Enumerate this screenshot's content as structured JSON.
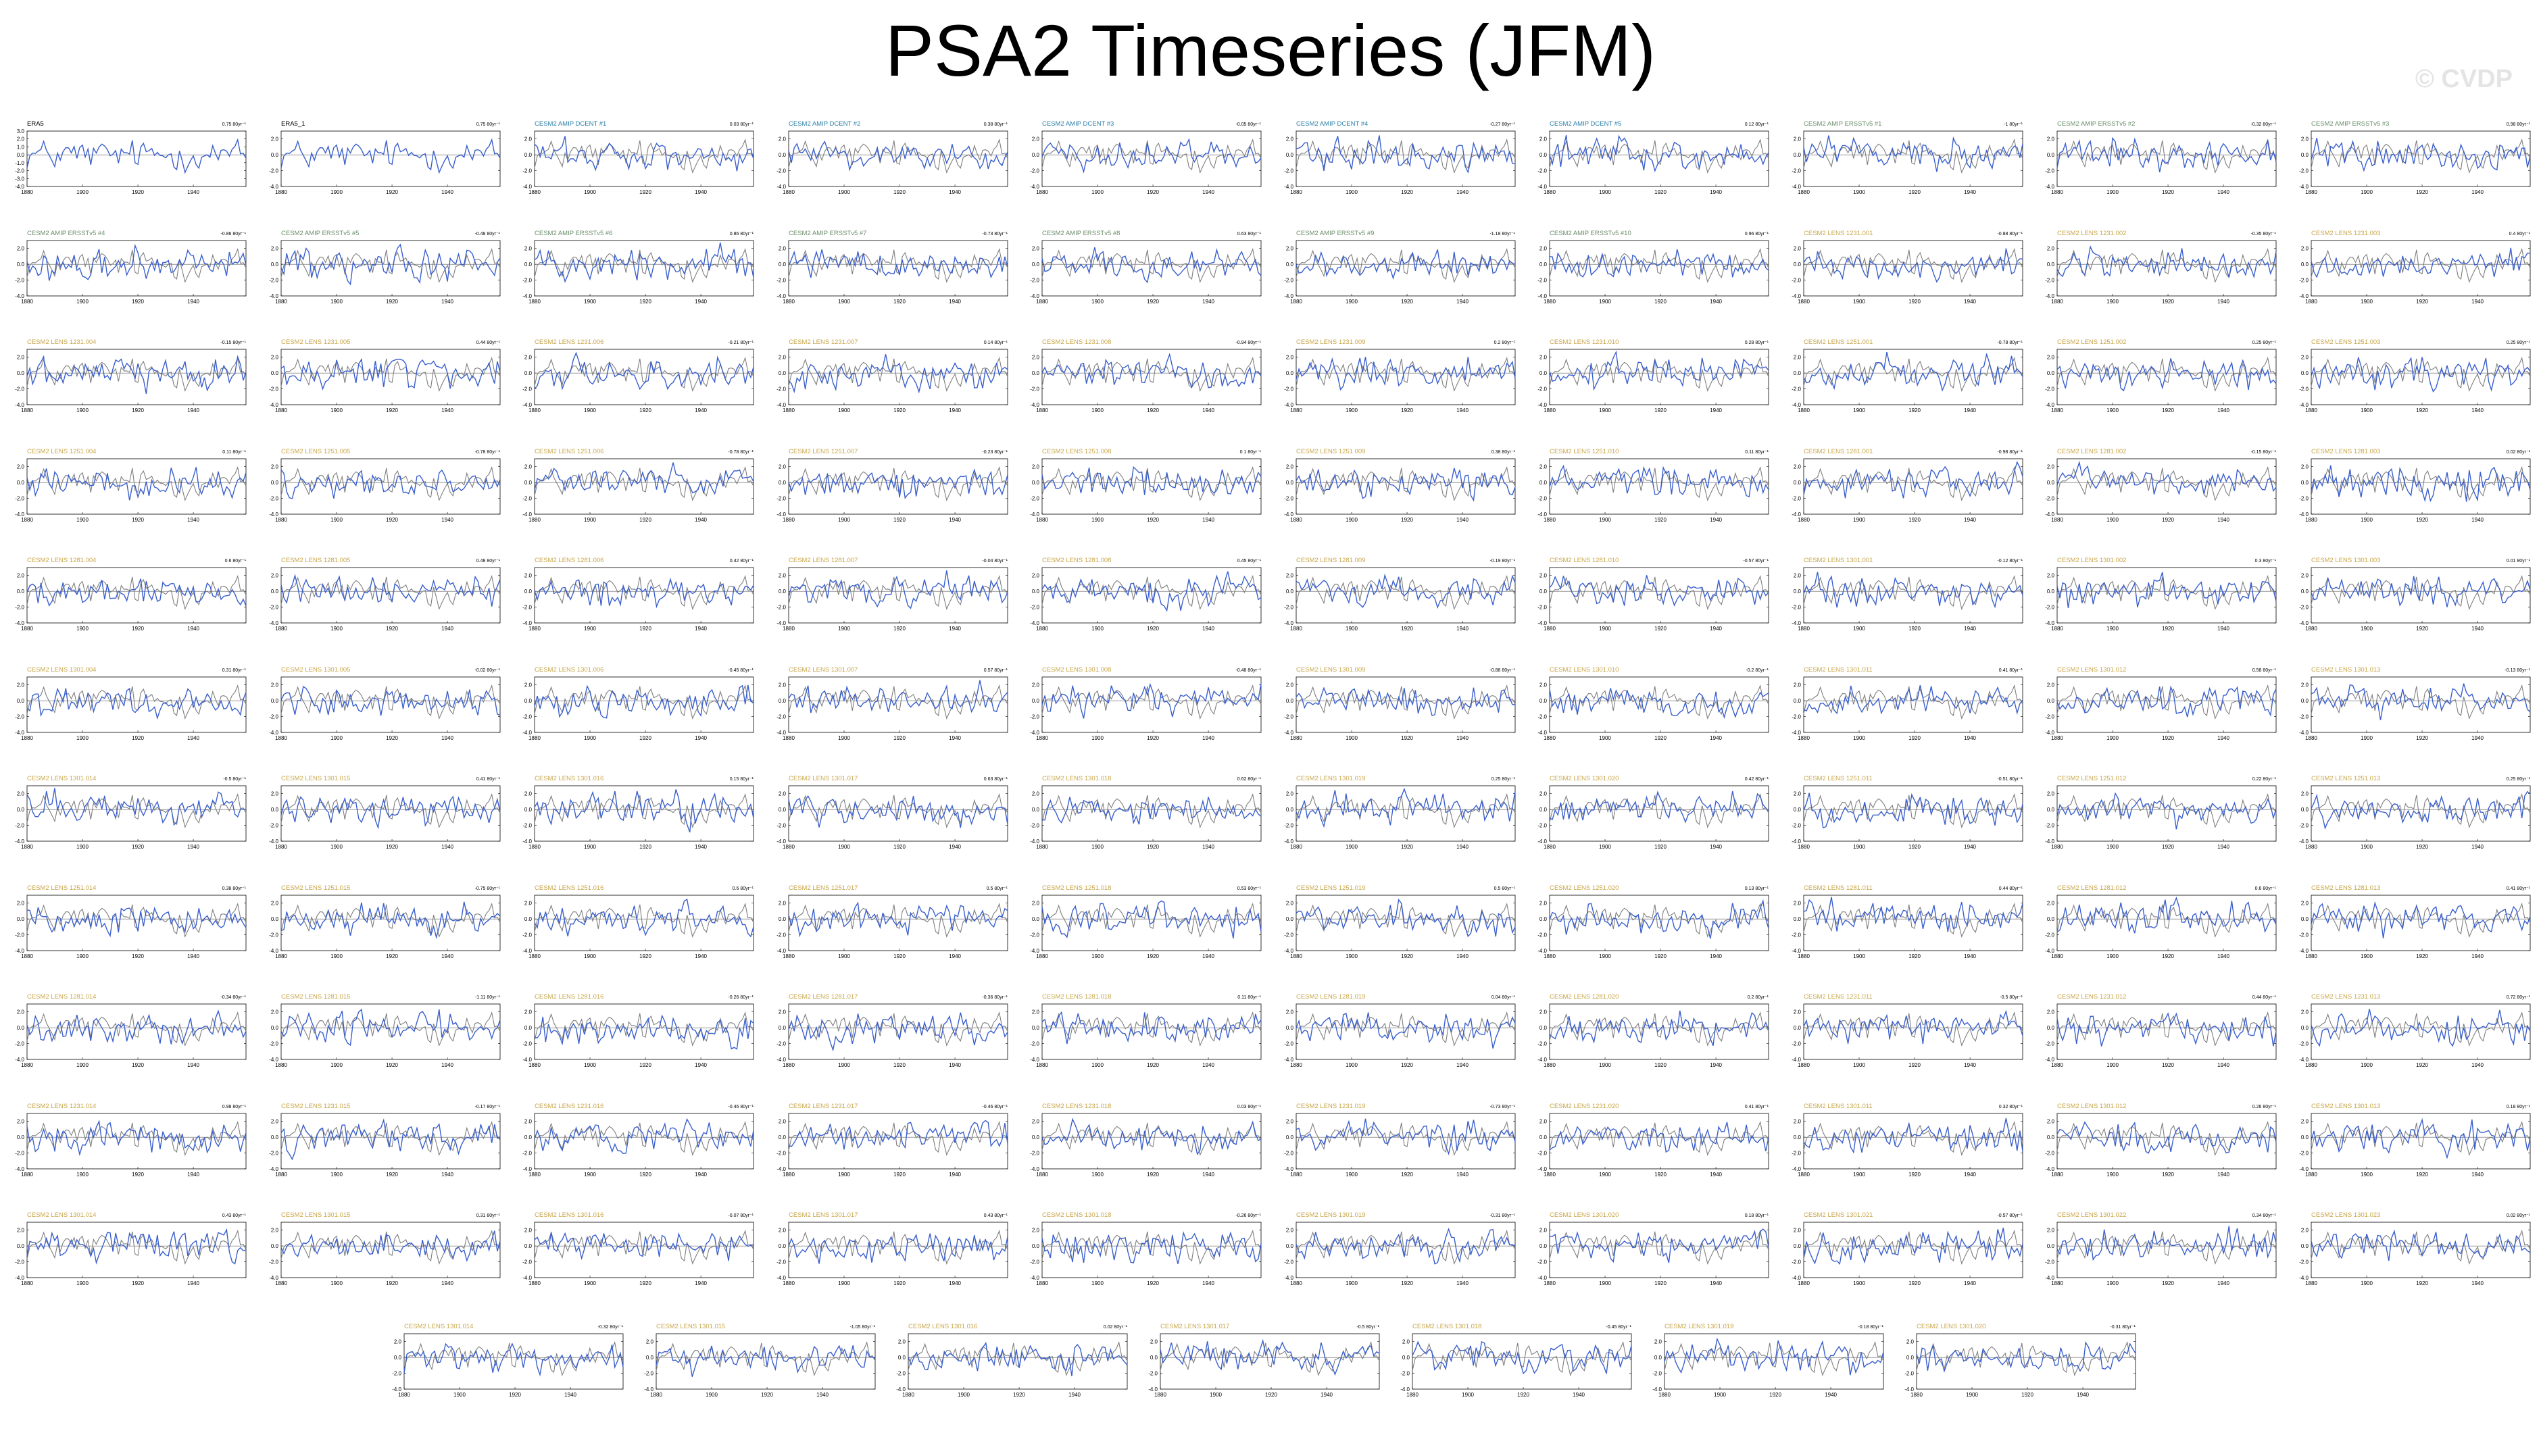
{
  "page": {
    "title": "PSA2 Timeseries (JFM)",
    "watermark": "© CVDP"
  },
  "styles": {
    "model_line_color": "#3a5fcd",
    "obs_line_color": "#7f7f7f",
    "title_colors": {
      "obs": "#000000",
      "dcent": "#2a7fa8",
      "ersst": "#6b8e6b",
      "lens": "#c8a64a"
    }
  },
  "chart_data": {
    "type": "line",
    "x_range": [
      1880,
      1959
    ],
    "x_ticks": [
      "1880",
      "1900",
      "1920",
      "1940"
    ],
    "y_range": [
      -4.0,
      3.0
    ],
    "y_ticks": [
      "2.0",
      "0.0",
      "-2.0",
      "-4.0"
    ],
    "first_panel_y_ticks": [
      "3.0",
      "2.0",
      "1.0",
      "0.0",
      "-1.0",
      "-2.0",
      "-3.0",
      "-4.0"
    ],
    "grid": false,
    "panels": [
      {
        "title": "ERA5",
        "trend": "0.75 80yr⁻¹",
        "group": "obs"
      },
      {
        "title": "ERA5_1",
        "trend": "0.75 80yr⁻¹",
        "group": "obs"
      },
      {
        "title": "CESM2 AMIP DCENT #1",
        "trend": "0.03 80yr⁻¹",
        "group": "dcent"
      },
      {
        "title": "CESM2 AMIP DCENT #2",
        "trend": "0.38 80yr⁻¹",
        "group": "dcent"
      },
      {
        "title": "CESM2 AMIP DCENT #3",
        "trend": "-0.05 80yr⁻¹",
        "group": "dcent"
      },
      {
        "title": "CESM2 AMIP DCENT #4",
        "trend": "-0.27 80yr⁻¹",
        "group": "dcent"
      },
      {
        "title": "CESM2 AMIP DCENT #5",
        "trend": "0.12 80yr⁻¹",
        "group": "dcent"
      },
      {
        "title": "CESM2 AMIP ERSSTv5 #1",
        "trend": "-1 80yr⁻¹",
        "group": "ersst"
      },
      {
        "title": "CESM2 AMIP ERSSTv5 #2",
        "trend": "-0.32 80yr⁻¹",
        "group": "ersst"
      },
      {
        "title": "CESM2 AMIP ERSSTv5 #3",
        "trend": "0.98 80yr⁻¹",
        "group": "ersst"
      },
      {
        "title": "CESM2 AMIP ERSSTv5 #4",
        "trend": "-0.86 80yr⁻¹",
        "group": "ersst"
      },
      {
        "title": "CESM2 AMIP ERSSTv5 #5",
        "trend": "-0.48 80yr⁻¹",
        "group": "ersst"
      },
      {
        "title": "CESM2 AMIP ERSSTv5 #6",
        "trend": "0.86 80yr⁻¹",
        "group": "ersst"
      },
      {
        "title": "CESM2 AMIP ERSSTv5 #7",
        "trend": "-0.73 80yr⁻¹",
        "group": "ersst"
      },
      {
        "title": "CESM2 AMIP ERSSTv5 #8",
        "trend": "0.63 80yr⁻¹",
        "group": "ersst"
      },
      {
        "title": "CESM2 AMIP ERSSTv5 #9",
        "trend": "-1.18 80yr⁻¹",
        "group": "ersst"
      },
      {
        "title": "CESM2 AMIP ERSSTv5 #10",
        "trend": "0.96 80yr⁻¹",
        "group": "ersst"
      },
      {
        "title": "CESM2 LENS 1231.001",
        "trend": "-0.88 80yr⁻¹",
        "group": "lens"
      },
      {
        "title": "CESM2 LENS 1231.002",
        "trend": "-0.35 80yr⁻¹",
        "group": "lens"
      },
      {
        "title": "CESM2 LENS 1231.003",
        "trend": "0.4 80yr⁻¹",
        "group": "lens"
      },
      {
        "title": "CESM2 LENS 1231.004",
        "trend": "-0.15 80yr⁻¹",
        "group": "lens"
      },
      {
        "title": "CESM2 LENS 1231.005",
        "trend": "0.44 80yr⁻¹",
        "group": "lens"
      },
      {
        "title": "CESM2 LENS 1231.006",
        "trend": "-0.21 80yr⁻¹",
        "group": "lens"
      },
      {
        "title": "CESM2 LENS 1231.007",
        "trend": "0.14 80yr⁻¹",
        "group": "lens"
      },
      {
        "title": "CESM2 LENS 1231.008",
        "trend": "-0.94 80yr⁻¹",
        "group": "lens"
      },
      {
        "title": "CESM2 LENS 1231.009",
        "trend": "0.2 80yr⁻¹",
        "group": "lens"
      },
      {
        "title": "CESM2 LENS 1231.010",
        "trend": "0.28 80yr⁻¹",
        "group": "lens"
      },
      {
        "title": "CESM2 LENS 1251.001",
        "trend": "-0.78 80yr⁻¹",
        "group": "lens"
      },
      {
        "title": "CESM2 LENS 1251.002",
        "trend": "0.25 80yr⁻¹",
        "group": "lens"
      },
      {
        "title": "CESM2 LENS 1251.003",
        "trend": "0.25 80yr⁻¹",
        "group": "lens"
      },
      {
        "title": "CESM2 LENS 1251.004",
        "trend": "0.11 80yr⁻¹",
        "group": "lens"
      },
      {
        "title": "CESM2 LENS 1251.005",
        "trend": "-0.78 80yr⁻¹",
        "group": "lens"
      },
      {
        "title": "CESM2 LENS 1251.006",
        "trend": "-0.78 80yr⁻¹",
        "group": "lens"
      },
      {
        "title": "CESM2 LENS 1251.007",
        "trend": "-0.23 80yr⁻¹",
        "group": "lens"
      },
      {
        "title": "CESM2 LENS 1251.008",
        "trend": "0.1 80yr⁻¹",
        "group": "lens"
      },
      {
        "title": "CESM2 LENS 1251.009",
        "trend": "0.38 80yr⁻¹",
        "group": "lens"
      },
      {
        "title": "CESM2 LENS 1251.010",
        "trend": "0.11 80yr⁻¹",
        "group": "lens"
      },
      {
        "title": "CESM2 LENS 1281.001",
        "trend": "-0.98 80yr⁻¹",
        "group": "lens"
      },
      {
        "title": "CESM2 LENS 1281.002",
        "trend": "-0.15 80yr⁻¹",
        "group": "lens"
      },
      {
        "title": "CESM2 LENS 1281.003",
        "trend": "0.02 80yr⁻¹",
        "group": "lens"
      },
      {
        "title": "CESM2 LENS 1281.004",
        "trend": "0.6 80yr⁻¹",
        "group": "lens"
      },
      {
        "title": "CESM2 LENS 1281.005",
        "trend": "0.48 80yr⁻¹",
        "group": "lens"
      },
      {
        "title": "CESM2 LENS 1281.006",
        "trend": "0.42 80yr⁻¹",
        "group": "lens"
      },
      {
        "title": "CESM2 LENS 1281.007",
        "trend": "-0.04 80yr⁻¹",
        "group": "lens"
      },
      {
        "title": "CESM2 LENS 1281.008",
        "trend": "0.45 80yr⁻¹",
        "group": "lens"
      },
      {
        "title": "CESM2 LENS 1281.009",
        "trend": "-0.19 80yr⁻¹",
        "group": "lens"
      },
      {
        "title": "CESM2 LENS 1281.010",
        "trend": "-0.57 80yr⁻¹",
        "group": "lens"
      },
      {
        "title": "CESM2 LENS 1301.001",
        "trend": "-0.12 80yr⁻¹",
        "group": "lens"
      },
      {
        "title": "CESM2 LENS 1301.002",
        "trend": "0.3 80yr⁻¹",
        "group": "lens"
      },
      {
        "title": "CESM2 LENS 1301.003",
        "trend": "0.01 80yr⁻¹",
        "group": "lens"
      },
      {
        "title": "CESM2 LENS 1301.004",
        "trend": "0.31 80yr⁻¹",
        "group": "lens"
      },
      {
        "title": "CESM2 LENS 1301.005",
        "trend": "-0.02 80yr⁻¹",
        "group": "lens"
      },
      {
        "title": "CESM2 LENS 1301.006",
        "trend": "-0.45 80yr⁻¹",
        "group": "lens"
      },
      {
        "title": "CESM2 LENS 1301.007",
        "trend": "0.57 80yr⁻¹",
        "group": "lens"
      },
      {
        "title": "CESM2 LENS 1301.008",
        "trend": "-0.48 80yr⁻¹",
        "group": "lens"
      },
      {
        "title": "CESM2 LENS 1301.009",
        "trend": "-0.88 80yr⁻¹",
        "group": "lens"
      },
      {
        "title": "CESM2 LENS 1301.010",
        "trend": "-0.2 80yr⁻¹",
        "group": "lens"
      },
      {
        "title": "CESM2 LENS 1301.011",
        "trend": "0.41 80yr⁻¹",
        "group": "lens"
      },
      {
        "title": "CESM2 LENS 1301.012",
        "trend": "0.58 80yr⁻¹",
        "group": "lens"
      },
      {
        "title": "CESM2 LENS 1301.013",
        "trend": "-0.13 80yr⁻¹",
        "group": "lens"
      },
      {
        "title": "CESM2 LENS 1301.014",
        "trend": "-0.5 80yr⁻¹",
        "group": "lens"
      },
      {
        "title": "CESM2 LENS 1301.015",
        "trend": "0.41 80yr⁻¹",
        "group": "lens"
      },
      {
        "title": "CESM2 LENS 1301.016",
        "trend": "0.15 80yr⁻¹",
        "group": "lens"
      },
      {
        "title": "CESM2 LENS 1301.017",
        "trend": "0.63 80yr⁻¹",
        "group": "lens"
      },
      {
        "title": "CESM2 LENS 1301.018",
        "trend": "0.62 80yr⁻¹",
        "group": "lens"
      },
      {
        "title": "CESM2 LENS 1301.019",
        "trend": "0.25 80yr⁻¹",
        "group": "lens"
      },
      {
        "title": "CESM2 LENS 1301.020",
        "trend": "0.42 80yr⁻¹",
        "group": "lens"
      },
      {
        "title": "CESM2 LENS 1251.011",
        "trend": "-0.51 80yr⁻¹",
        "group": "lens"
      },
      {
        "title": "CESM2 LENS 1251.012",
        "trend": "0.22 80yr⁻¹",
        "group": "lens"
      },
      {
        "title": "CESM2 LENS 1251.013",
        "trend": "0.25 80yr⁻¹",
        "group": "lens"
      },
      {
        "title": "CESM2 LENS 1251.014",
        "trend": "0.38 80yr⁻¹",
        "group": "lens"
      },
      {
        "title": "CESM2 LENS 1251.015",
        "trend": "-0.75 80yr⁻¹",
        "group": "lens"
      },
      {
        "title": "CESM2 LENS 1251.016",
        "trend": "0.6 80yr⁻¹",
        "group": "lens"
      },
      {
        "title": "CESM2 LENS 1251.017",
        "trend": "0.5 80yr⁻¹",
        "group": "lens"
      },
      {
        "title": "CESM2 LENS 1251.018",
        "trend": "0.53 80yr⁻¹",
        "group": "lens"
      },
      {
        "title": "CESM2 LENS 1251.019",
        "trend": "0.5 80yr⁻¹",
        "group": "lens"
      },
      {
        "title": "CESM2 LENS 1251.020",
        "trend": "0.13 80yr⁻¹",
        "group": "lens"
      },
      {
        "title": "CESM2 LENS 1281.011",
        "trend": "0.44 80yr⁻¹",
        "group": "lens"
      },
      {
        "title": "CESM2 LENS 1281.012",
        "trend": "0.6 80yr⁻¹",
        "group": "lens"
      },
      {
        "title": "CESM2 LENS 1281.013",
        "trend": "0.41 80yr⁻¹",
        "group": "lens"
      },
      {
        "title": "CESM2 LENS 1281.014",
        "trend": "-0.34 80yr⁻¹",
        "group": "lens"
      },
      {
        "title": "CESM2 LENS 1281.015",
        "trend": "-1.11 80yr⁻¹",
        "group": "lens"
      },
      {
        "title": "CESM2 LENS 1281.016",
        "trend": "-0.26 80yr⁻¹",
        "group": "lens"
      },
      {
        "title": "CESM2 LENS 1281.017",
        "trend": "-0.36 80yr⁻¹",
        "group": "lens"
      },
      {
        "title": "CESM2 LENS 1281.018",
        "trend": "0.11 80yr⁻¹",
        "group": "lens"
      },
      {
        "title": "CESM2 LENS 1281.019",
        "trend": "0.04 80yr⁻¹",
        "group": "lens"
      },
      {
        "title": "CESM2 LENS 1281.020",
        "trend": "0.2 80yr⁻¹",
        "group": "lens"
      },
      {
        "title": "CESM2 LENS 1231.011",
        "trend": "-0.5 80yr⁻¹",
        "group": "lens"
      },
      {
        "title": "CESM2 LENS 1231.012",
        "trend": "0.44 80yr⁻¹",
        "group": "lens"
      },
      {
        "title": "CESM2 LENS 1231.013",
        "trend": "0.72 80yr⁻¹",
        "group": "lens"
      },
      {
        "title": "CESM2 LENS 1231.014",
        "trend": "0.98 80yr⁻¹",
        "group": "lens"
      },
      {
        "title": "CESM2 LENS 1231.015",
        "trend": "-0.17 80yr⁻¹",
        "group": "lens"
      },
      {
        "title": "CESM2 LENS 1231.016",
        "trend": "-0.46 80yr⁻¹",
        "group": "lens"
      },
      {
        "title": "CESM2 LENS 1231.017",
        "trend": "-0.46 80yr⁻¹",
        "group": "lens"
      },
      {
        "title": "CESM2 LENS 1231.018",
        "trend": "0.03 80yr⁻¹",
        "group": "lens"
      },
      {
        "title": "CESM2 LENS 1231.019",
        "trend": "-0.73 80yr⁻¹",
        "group": "lens"
      },
      {
        "title": "CESM2 LENS 1231.020",
        "trend": "0.41 80yr⁻¹",
        "group": "lens"
      },
      {
        "title": "CESM2 LENS 1301.011",
        "trend": "0.32 80yr⁻¹",
        "group": "lens"
      },
      {
        "title": "CESM2 LENS 1301.012",
        "trend": "0.26 80yr⁻¹",
        "group": "lens"
      },
      {
        "title": "CESM2 LENS 1301.013",
        "trend": "0.18 80yr⁻¹",
        "group": "lens"
      },
      {
        "title": "CESM2 LENS 1301.014",
        "trend": "0.43 80yr⁻¹",
        "group": "lens"
      },
      {
        "title": "CESM2 LENS 1301.015",
        "trend": "0.31 80yr⁻¹",
        "group": "lens"
      },
      {
        "title": "CESM2 LENS 1301.016",
        "trend": "-0.07 80yr⁻¹",
        "group": "lens"
      },
      {
        "title": "CESM2 LENS 1301.017",
        "trend": "0.43 80yr⁻¹",
        "group": "lens"
      },
      {
        "title": "CESM2 LENS 1301.018",
        "trend": "-0.26 80yr⁻¹",
        "group": "lens"
      },
      {
        "title": "CESM2 LENS 1301.019",
        "trend": "-0.31 80yr⁻¹",
        "group": "lens"
      },
      {
        "title": "CESM2 LENS 1301.020",
        "trend": "0.18 80yr⁻¹",
        "group": "lens"
      },
      {
        "title": "CESM2 LENS 1301.021",
        "trend": "-0.57 80yr⁻¹",
        "group": "lens"
      },
      {
        "title": "CESM2 LENS 1301.022",
        "trend": "0.34 80yr⁻¹",
        "group": "lens"
      },
      {
        "title": "CESM2 LENS 1301.023",
        "trend": "0.02 80yr⁻¹",
        "group": "lens"
      },
      {
        "title": "CESM2 LENS 1301.014",
        "trend": "-0.32 80yr⁻¹",
        "group": "lens"
      },
      {
        "title": "CESM2 LENS 1301.015",
        "trend": "-1.05 80yr⁻¹",
        "group": "lens"
      },
      {
        "title": "CESM2 LENS 1301.016",
        "trend": "0.02 80yr⁻¹",
        "group": "lens"
      },
      {
        "title": "CESM2 LENS 1301.017",
        "trend": "-0.5 80yr⁻¹",
        "group": "lens"
      },
      {
        "title": "CESM2 LENS 1301.018",
        "trend": "-0.45 80yr⁻¹",
        "group": "lens"
      },
      {
        "title": "CESM2 LENS 1301.019",
        "trend": "-0.18 80yr⁻¹",
        "group": "lens"
      },
      {
        "title": "CESM2 LENS 1301.020",
        "trend": "-0.31 80yr⁻¹",
        "group": "lens"
      }
    ]
  }
}
